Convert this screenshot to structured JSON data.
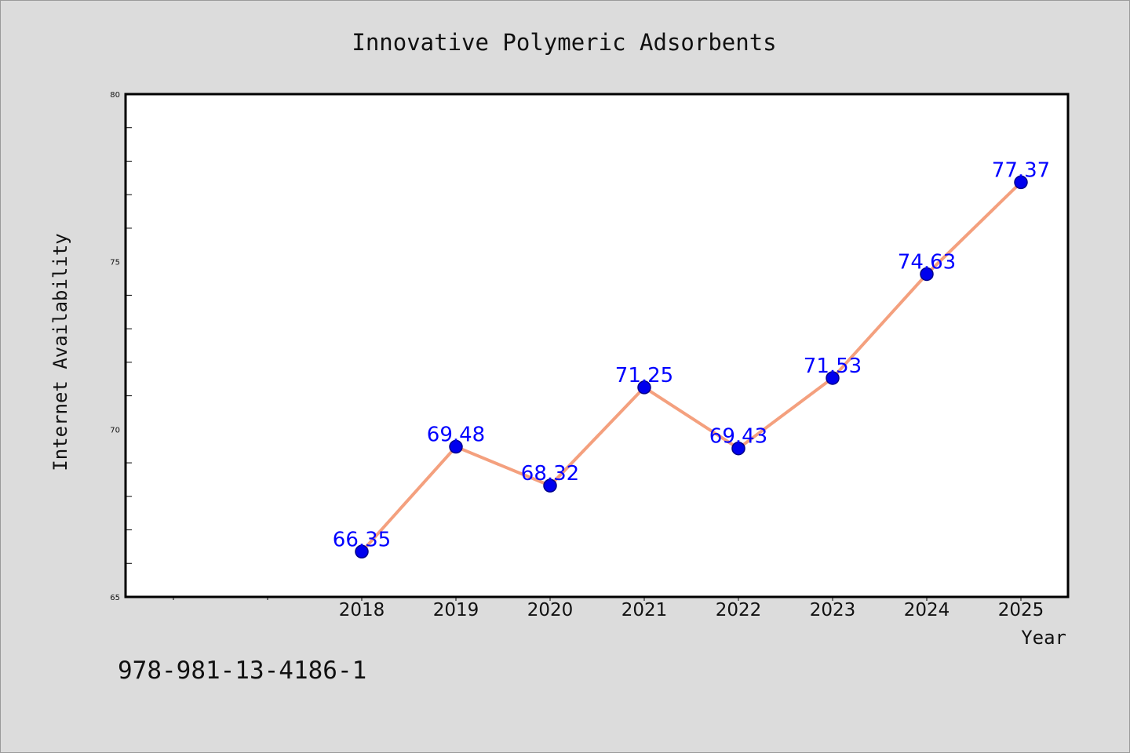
{
  "chart_data": {
    "type": "line",
    "title": "Innovative Polymeric Adsorbents",
    "xlabel": "Year",
    "ylabel": "Internet Availability",
    "categories": [
      "2018",
      "2019",
      "2020",
      "2021",
      "2022",
      "2023",
      "2024",
      "2025"
    ],
    "series": [
      {
        "values": [
          66.35,
          69.48,
          68.32,
          71.25,
          69.43,
          71.53,
          74.63,
          77.37
        ],
        "data_labels": [
          "66.35",
          "69.48",
          "68.32",
          "71.25",
          "69.43",
          "71.53",
          "74.63",
          "77.37"
        ]
      }
    ],
    "ylim": [
      65,
      80
    ],
    "yticks": [
      "65",
      "70",
      "75",
      "80"
    ],
    "grid": false,
    "legend": "none",
    "colors": {
      "line": "#f4a07e",
      "marker": "#0000ee",
      "marker_edge": "#00008b",
      "data_label": "#0000ff",
      "plot_bg": "#ffffff",
      "page_bg": "#dcdcdc"
    }
  },
  "footer": {
    "isbn": "978-981-13-4186-1"
  }
}
